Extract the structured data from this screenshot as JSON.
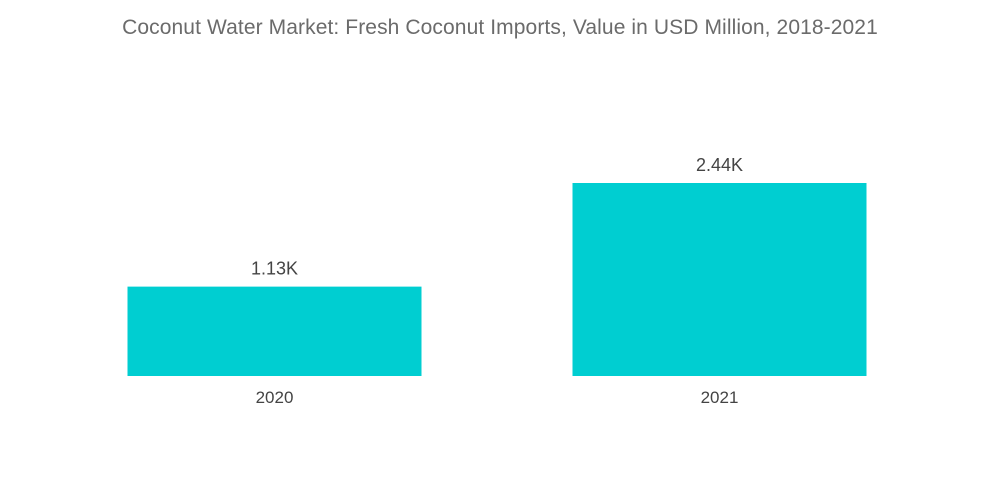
{
  "chart_data": {
    "type": "bar",
    "title": "Coconut Water Market: Fresh Coconut Imports, Value in USD Million, 2018-2021",
    "categories": [
      "2020",
      "2021"
    ],
    "values": [
      1130,
      2440
    ],
    "value_labels": [
      "1.13K",
      "2.44K"
    ],
    "xlabel": "",
    "ylabel": "",
    "ylim": [
      0,
      2440
    ],
    "grid": false,
    "legend": "none",
    "bar_color": "#00CED1"
  }
}
